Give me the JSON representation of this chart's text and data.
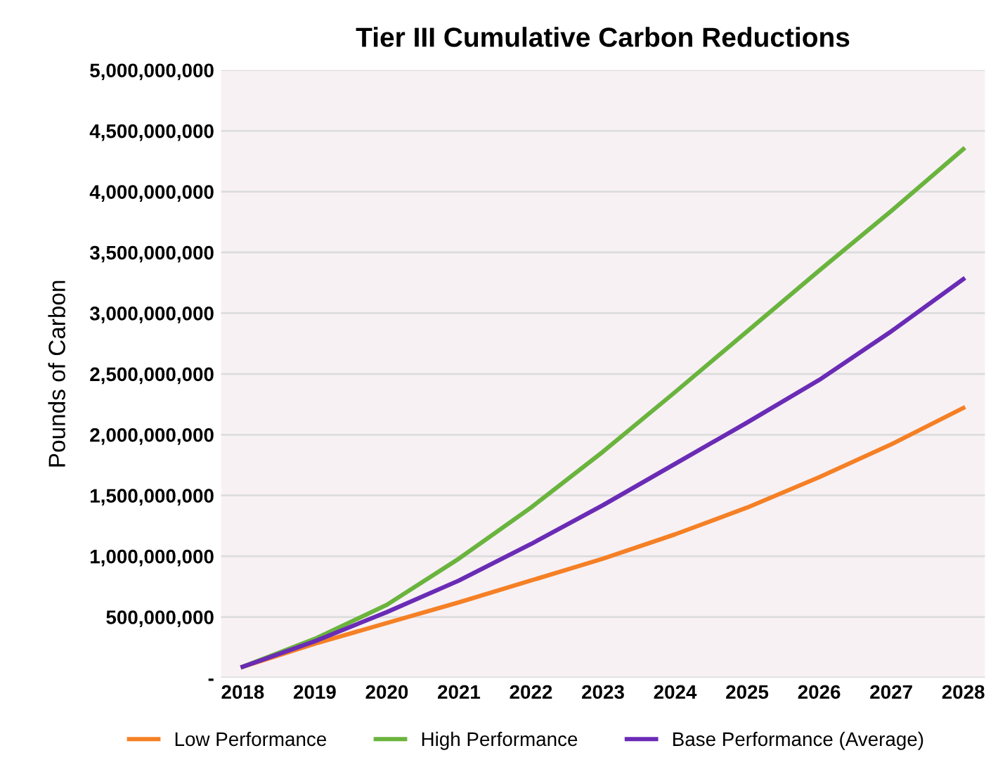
{
  "chart_data": {
    "type": "line",
    "title": "Tier III Cumulative Carbon Reductions",
    "ylabel": "Pounds of Carbon",
    "categories": [
      "2018",
      "2019",
      "2020",
      "2021",
      "2022",
      "2023",
      "2024",
      "2025",
      "2026",
      "2027",
      "2028"
    ],
    "series": [
      {
        "name": "Low Performance",
        "color": "#f58025",
        "values": [
          90000000,
          280000000,
          450000000,
          620000000,
          800000000,
          980000000,
          1180000000,
          1400000000,
          1650000000,
          1920000000,
          2220000000
        ]
      },
      {
        "name": "High Performance",
        "color": "#6ab43e",
        "values": [
          90000000,
          320000000,
          600000000,
          980000000,
          1400000000,
          1860000000,
          2350000000,
          2850000000,
          3350000000,
          3840000000,
          4350000000
        ]
      },
      {
        "name": "Base Performance (Average)",
        "color": "#6a2bb5",
        "values": [
          90000000,
          300000000,
          540000000,
          800000000,
          1100000000,
          1420000000,
          1760000000,
          2100000000,
          2450000000,
          2850000000,
          3280000000
        ]
      }
    ],
    "ylim": [
      0,
      5000000000
    ],
    "yticks": [
      {
        "value": 0,
        "label": "-"
      },
      {
        "value": 500000000,
        "label": "500,000,000"
      },
      {
        "value": 1000000000,
        "label": "1,000,000,000"
      },
      {
        "value": 1500000000,
        "label": "1,500,000,000"
      },
      {
        "value": 2000000000,
        "label": "2,000,000,000"
      },
      {
        "value": 2500000000,
        "label": "2,500,000,000"
      },
      {
        "value": 3000000000,
        "label": "3,000,000,000"
      },
      {
        "value": 3500000000,
        "label": "3,500,000,000"
      },
      {
        "value": 4000000000,
        "label": "4,000,000,000"
      },
      {
        "value": 4500000000,
        "label": "4,500,000,000"
      },
      {
        "value": 5000000000,
        "label": "5,000,000,000"
      }
    ],
    "grid": "y",
    "legend": "bottom",
    "marker": "none",
    "line_style": "solid"
  }
}
